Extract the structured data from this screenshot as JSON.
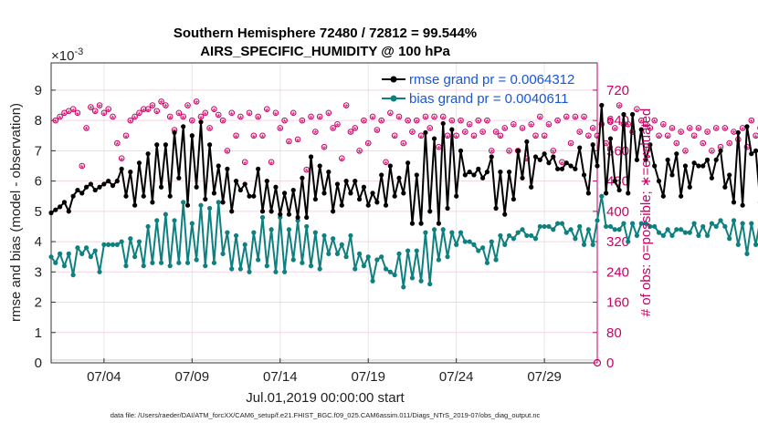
{
  "chart_data": {
    "type": "line",
    "title_line1": "Southern Hemisphere 72480 / 72812 = 99.544%",
    "title_line2": "AIRS_SPECIFIC_HUMIDITY @ 100 hPa",
    "exponent_label": "×10",
    "exponent_power": "-3",
    "ylabel_left": "rmse and bias (model - observation)",
    "ylabel_right": "# of obs: o=possible; ∗=evaluated",
    "xlabel": "Jul.01,2019 00:00:00 start",
    "footer": "data file: /Users/raeder/DAI/ATM_forcXX/CAM6_setup/f.e21.FHIST_BGC.f09_025.CAM6assim.011/Diags_NTrS_2019-07/obs_diag_output.nc",
    "x_tick_labels": [
      "07/04",
      "07/09",
      "07/14",
      "07/19",
      "07/24",
      "07/29"
    ],
    "x_tick_days": [
      4,
      9,
      14,
      19,
      24,
      29
    ],
    "xlim": [
      1,
      32
    ],
    "ylim_left": [
      0,
      9.9
    ],
    "yticks_left": [
      0,
      1,
      2,
      3,
      4,
      5,
      6,
      7,
      8,
      9
    ],
    "ylim_right": [
      0,
      792
    ],
    "yticks_right": [
      0,
      80,
      160,
      240,
      320,
      400,
      480,
      560,
      640,
      720
    ],
    "legend": [
      {
        "name": "rmse grand pr = 0.0064312",
        "color": "#000000"
      },
      {
        "name": "bias grand pr = 0.0040611",
        "color": "#0e8080"
      }
    ],
    "colors": {
      "rmse": "#000000",
      "bias": "#0e8080",
      "obs": "#cc0066"
    },
    "series": [
      {
        "name": "rmse",
        "step_days": 0.25,
        "start_day": 1.0,
        "values": [
          4.95,
          5.05,
          5.15,
          5.3,
          5.0,
          5.5,
          5.7,
          5.6,
          5.8,
          5.9,
          5.7,
          5.8,
          5.9,
          6.0,
          5.85,
          6.0,
          6.4,
          5.5,
          6.3,
          5.2,
          6.6,
          5.5,
          6.9,
          5.3,
          7.2,
          5.8,
          7.2,
          5.5,
          7.6,
          6.1,
          7.8,
          5.2,
          7.5,
          5.8,
          7.95,
          5.4,
          7.2,
          5.6,
          6.5,
          5.3,
          6.4,
          5.0,
          6.0,
          5.7,
          5.9,
          5.5,
          5.5,
          6.4,
          5.0,
          6.0,
          5.0,
          5.8,
          4.9,
          5.6,
          4.9,
          5.7,
          4.8,
          6.1,
          4.8,
          6.8,
          5.4,
          6.5,
          5.6,
          6.3,
          5.0,
          5.9,
          5.2,
          6.0,
          5.6,
          6.0,
          5.4,
          5.8,
          5.2,
          5.6,
          5.3,
          6.2,
          5.2,
          6.5,
          5.5,
          6.1,
          5.6,
          6.6,
          4.6,
          6.2,
          4.6,
          7.6,
          5.0,
          7.4,
          4.6,
          7.9,
          5.1,
          7.7,
          5.5,
          7.0,
          6.2,
          6.3,
          6.2,
          6.4,
          6.1,
          6.3,
          6.8,
          5.1,
          6.3,
          4.9,
          6.3,
          5.4,
          7.0,
          6.1,
          7.3,
          5.8,
          6.8,
          6.7,
          6.9,
          6.6,
          6.8,
          6.4,
          6.4,
          6.6,
          6.5,
          6.4,
          7.1,
          6.2,
          5.6,
          7.2,
          6.5,
          8.5,
          5.6,
          7.4,
          6.0,
          5.7,
          8.2,
          5.6,
          8.2,
          6.7,
          7.7,
          6.7,
          7.2,
          6.5,
          6.0,
          5.5,
          6.7,
          6.2,
          6.9,
          5.5,
          6.5,
          5.8,
          6.6,
          6.5,
          6.5,
          6.7,
          6.1,
          6.7,
          7.0,
          5.8,
          6.2,
          5.3,
          7.6,
          5.2,
          7.8,
          6.9,
          7.0,
          5.3,
          8.0,
          5.2,
          7.3
        ]
      },
      {
        "name": "bias",
        "step_days": 0.25,
        "start_day": 1.0,
        "values": [
          3.5,
          3.3,
          3.6,
          3.2,
          3.6,
          2.9,
          3.8,
          3.6,
          3.8,
          3.5,
          3.7,
          3.0,
          3.9,
          3.9,
          3.9,
          3.9,
          4.0,
          3.2,
          4.1,
          3.5,
          4.0,
          3.2,
          4.5,
          3.3,
          4.7,
          3.3,
          4.9,
          3.2,
          4.7,
          3.3,
          5.3,
          3.3,
          4.6,
          3.4,
          5.2,
          3.2,
          5.1,
          3.3,
          5.3,
          3.6,
          4.3,
          3.1,
          4.2,
          3.1,
          3.9,
          3.0,
          4.3,
          3.4,
          4.8,
          3.2,
          4.4,
          3.0,
          4.8,
          3.0,
          4.4,
          3.4,
          4.7,
          3.3,
          4.5,
          3.2,
          4.3,
          3.1,
          4.2,
          3.6,
          4.1,
          3.6,
          3.9,
          3.5,
          4.2,
          3.1,
          3.6,
          3.2,
          3.5,
          2.7,
          3.4,
          3.5,
          3.1,
          3.0,
          2.9,
          3.6,
          2.5,
          3.7,
          2.8,
          3.7,
          2.7,
          4.3,
          2.6,
          4.4,
          3.4,
          4.4,
          3.5,
          4.3,
          3.9,
          4.3,
          4.0,
          4.0,
          3.9,
          3.7,
          3.8,
          3.3,
          4.0,
          3.4,
          4.2,
          3.9,
          4.2,
          4.1,
          4.3,
          4.4,
          4.2,
          4.2,
          4.1,
          4.5,
          4.5,
          4.5,
          4.4,
          4.6,
          4.6,
          4.3,
          4.4,
          4.1,
          4.5,
          3.9,
          4.4,
          3.9,
          4.7,
          5.5,
          4.5,
          4.5,
          4.4,
          4.4,
          4.6,
          4.0,
          4.6,
          4.2,
          4.6,
          4.6,
          4.5,
          4.5,
          4.3,
          4.2,
          4.4,
          4.2,
          4.4,
          4.4,
          4.3,
          4.3,
          4.6,
          4.2,
          4.5,
          4.2,
          4.6,
          4.5,
          4.7,
          4.5,
          4.1,
          4.7,
          3.9,
          4.6,
          3.6,
          4.6,
          3.9,
          4.7,
          3.8,
          5.3,
          3.6,
          4.5
        ]
      },
      {
        "name": "obs_possible",
        "step_days": 0.25,
        "start_day": 1.25,
        "values": [
          640,
          650,
          660,
          665,
          670,
          660,
          520,
          620,
          675,
          665,
          680,
          660,
          670,
          650,
          580,
          540,
          600,
          640,
          650,
          660,
          670,
          670,
          680,
          665,
          690,
          680,
          650,
          615,
          660,
          650,
          680,
          640,
          690,
          650,
          660,
          620,
          670,
          655,
          640,
          560,
          660,
          600,
          650,
          530,
          660,
          600,
          650,
          600,
          670,
          530,
          660,
          620,
          640,
          585,
          660,
          590,
          640,
          510,
          650,
          610,
          650,
          570,
          660,
          620,
          630,
          540,
          680,
          610,
          620,
          560,
          640,
          580,
          650,
          615,
          640,
          530,
          660,
          600,
          650,
          580,
          640,
          610,
          640,
          600,
          650,
          620,
          650,
          570,
          650,
          600,
          640,
          600,
          640,
          610,
          630,
          600,
          640,
          610,
          640,
          560,
          610,
          600,
          620,
          560,
          630,
          560,
          620,
          540,
          630,
          600,
          650,
          600,
          630,
          560,
          640,
          530,
          650,
          580,
          650,
          610,
          650,
          600,
          620,
          600,
          630,
          580,
          640,
          620,
          680,
          630,
          630,
          610,
          670,
          640,
          630,
          620,
          640,
          600,
          630,
          600,
          620,
          580,
          610,
          560,
          620,
          600,
          620,
          580,
          610,
          560,
          620,
          570,
          620,
          580,
          610,
          590,
          620,
          570,
          640,
          600,
          620,
          560,
          630,
          580,
          630,
          600
        ]
      },
      {
        "name": "obs_evaluated",
        "step_days": 0.25,
        "start_day": 1.25,
        "values": [
          635,
          645,
          655,
          660,
          665,
          655,
          515,
          615,
          670,
          660,
          675,
          655,
          665,
          645,
          575,
          535,
          595,
          635,
          645,
          655,
          665,
          665,
          675,
          660,
          685,
          675,
          645,
          610,
          655,
          645,
          675,
          635,
          685,
          645,
          655,
          615,
          665,
          650,
          635,
          555,
          655,
          595,
          645,
          525,
          655,
          595,
          645,
          595,
          665,
          525,
          655,
          615,
          635,
          580,
          655,
          585,
          635,
          505,
          645,
          605,
          645,
          565,
          655,
          615,
          625,
          535,
          675,
          605,
          615,
          555,
          635,
          575,
          645,
          610,
          635,
          525,
          655,
          595,
          645,
          575,
          635,
          605,
          635,
          595,
          645,
          615,
          645,
          565,
          645,
          595,
          635,
          595,
          635,
          605,
          625,
          595,
          635,
          605,
          635,
          555,
          605,
          595,
          615,
          555,
          625,
          555,
          615,
          535,
          625,
          595,
          645,
          595,
          625,
          555,
          635,
          525,
          645,
          575,
          645,
          605,
          645,
          595,
          615,
          595,
          625,
          575,
          635,
          615,
          675,
          625,
          625,
          605,
          665,
          635,
          625,
          615,
          635,
          595,
          625,
          595,
          615,
          575,
          605,
          555,
          615,
          595,
          615,
          575,
          605,
          555,
          615,
          565,
          615,
          575,
          605,
          585,
          615,
          565,
          635,
          595,
          615,
          555,
          625,
          575,
          625,
          595
        ]
      }
    ],
    "final_obs_point": {
      "day": 32,
      "value": 0
    }
  }
}
